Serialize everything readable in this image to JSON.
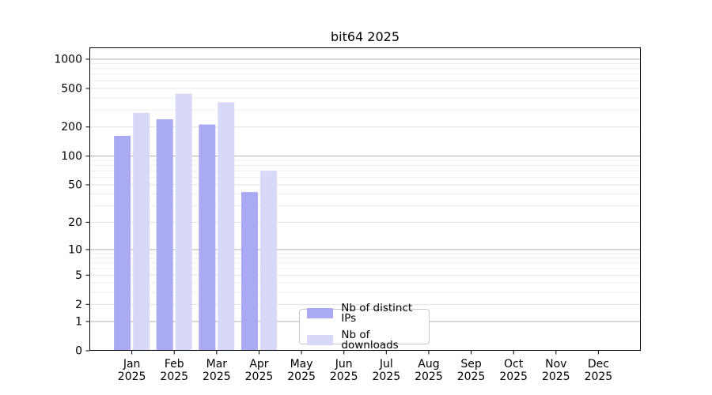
{
  "chart_data": {
    "type": "bar",
    "title": "bit64 2025",
    "xlabel": "",
    "ylabel": "",
    "x": {
      "categories": [
        "Jan",
        "Feb",
        "Mar",
        "Apr",
        "May",
        "Jun",
        "Jul",
        "Aug",
        "Sep",
        "Oct",
        "Nov",
        "Dec"
      ],
      "year_label": "2025"
    },
    "y": {
      "scale": "log1p",
      "ticks": [
        0,
        1,
        2,
        5,
        10,
        20,
        50,
        100,
        200,
        500,
        1000
      ],
      "minor_gridlines": [
        3,
        4,
        6,
        7,
        8,
        9,
        30,
        40,
        60,
        70,
        80,
        90,
        300,
        400,
        600,
        700,
        800,
        900
      ],
      "range_top": 1320
    },
    "series": [
      {
        "name": "Nb of distinct IPs",
        "color": "#a9a9f4",
        "values": [
          162,
          240,
          212,
          42,
          0,
          0,
          0,
          0,
          0,
          0,
          0,
          0
        ]
      },
      {
        "name": "Nb of downloads",
        "color": "#d8d8f8",
        "values": [
          280,
          440,
          360,
          70,
          0,
          0,
          0,
          0,
          0,
          0,
          0,
          0
        ]
      }
    ],
    "legend_position": "bottom-center",
    "grid": true,
    "colors": {
      "axis": "#000000",
      "gridline_decade": "#b2b2b2",
      "gridline_labeled": "#e2e2e2",
      "gridline_minor": "#ececec",
      "legend_border": "#c9c9c9",
      "background": "#ffffff"
    }
  }
}
